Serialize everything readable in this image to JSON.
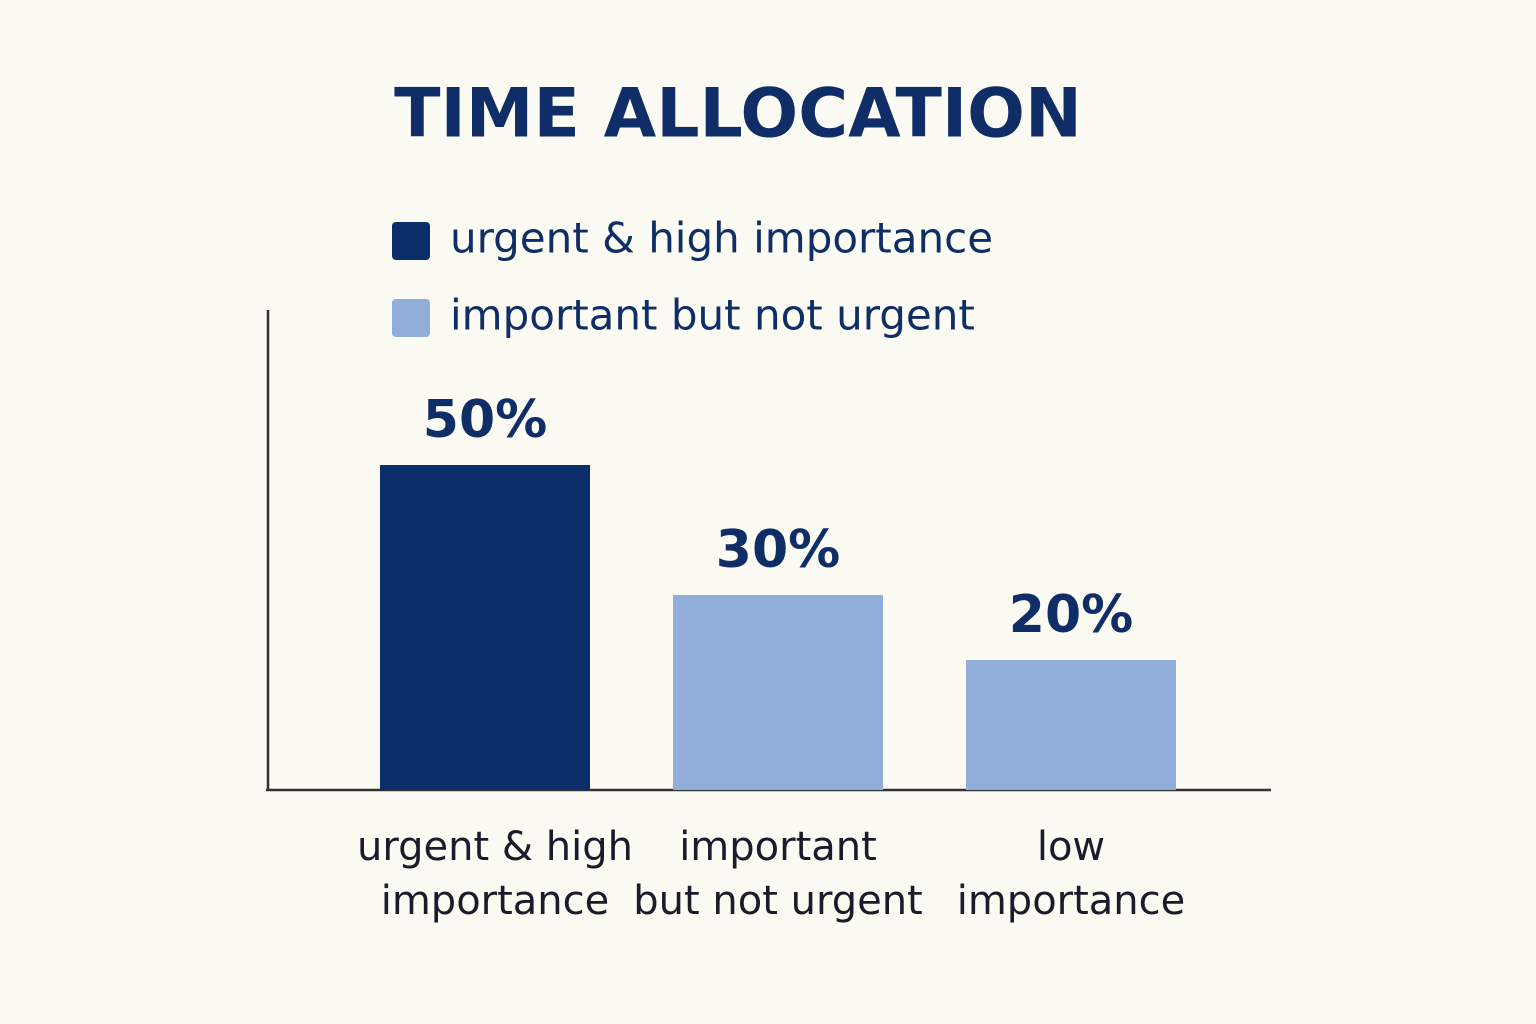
{
  "chart_data": {
    "type": "bar",
    "title": "TIME ALLOCATION",
    "categories": [
      "urgent & high\nimportance",
      "important\nbut not urgent",
      "low\nimportance"
    ],
    "values": [
      50,
      30,
      20
    ],
    "value_labels": [
      "50%",
      "30%",
      "20%"
    ],
    "colors": [
      "#0b2d69",
      "#91aedb",
      "#91aedb"
    ],
    "legend": [
      {
        "name": "urgent & high importance",
        "color": "#0b2d69"
      },
      {
        "name": "important but not urgent",
        "color": "#91aedb"
      }
    ]
  }
}
